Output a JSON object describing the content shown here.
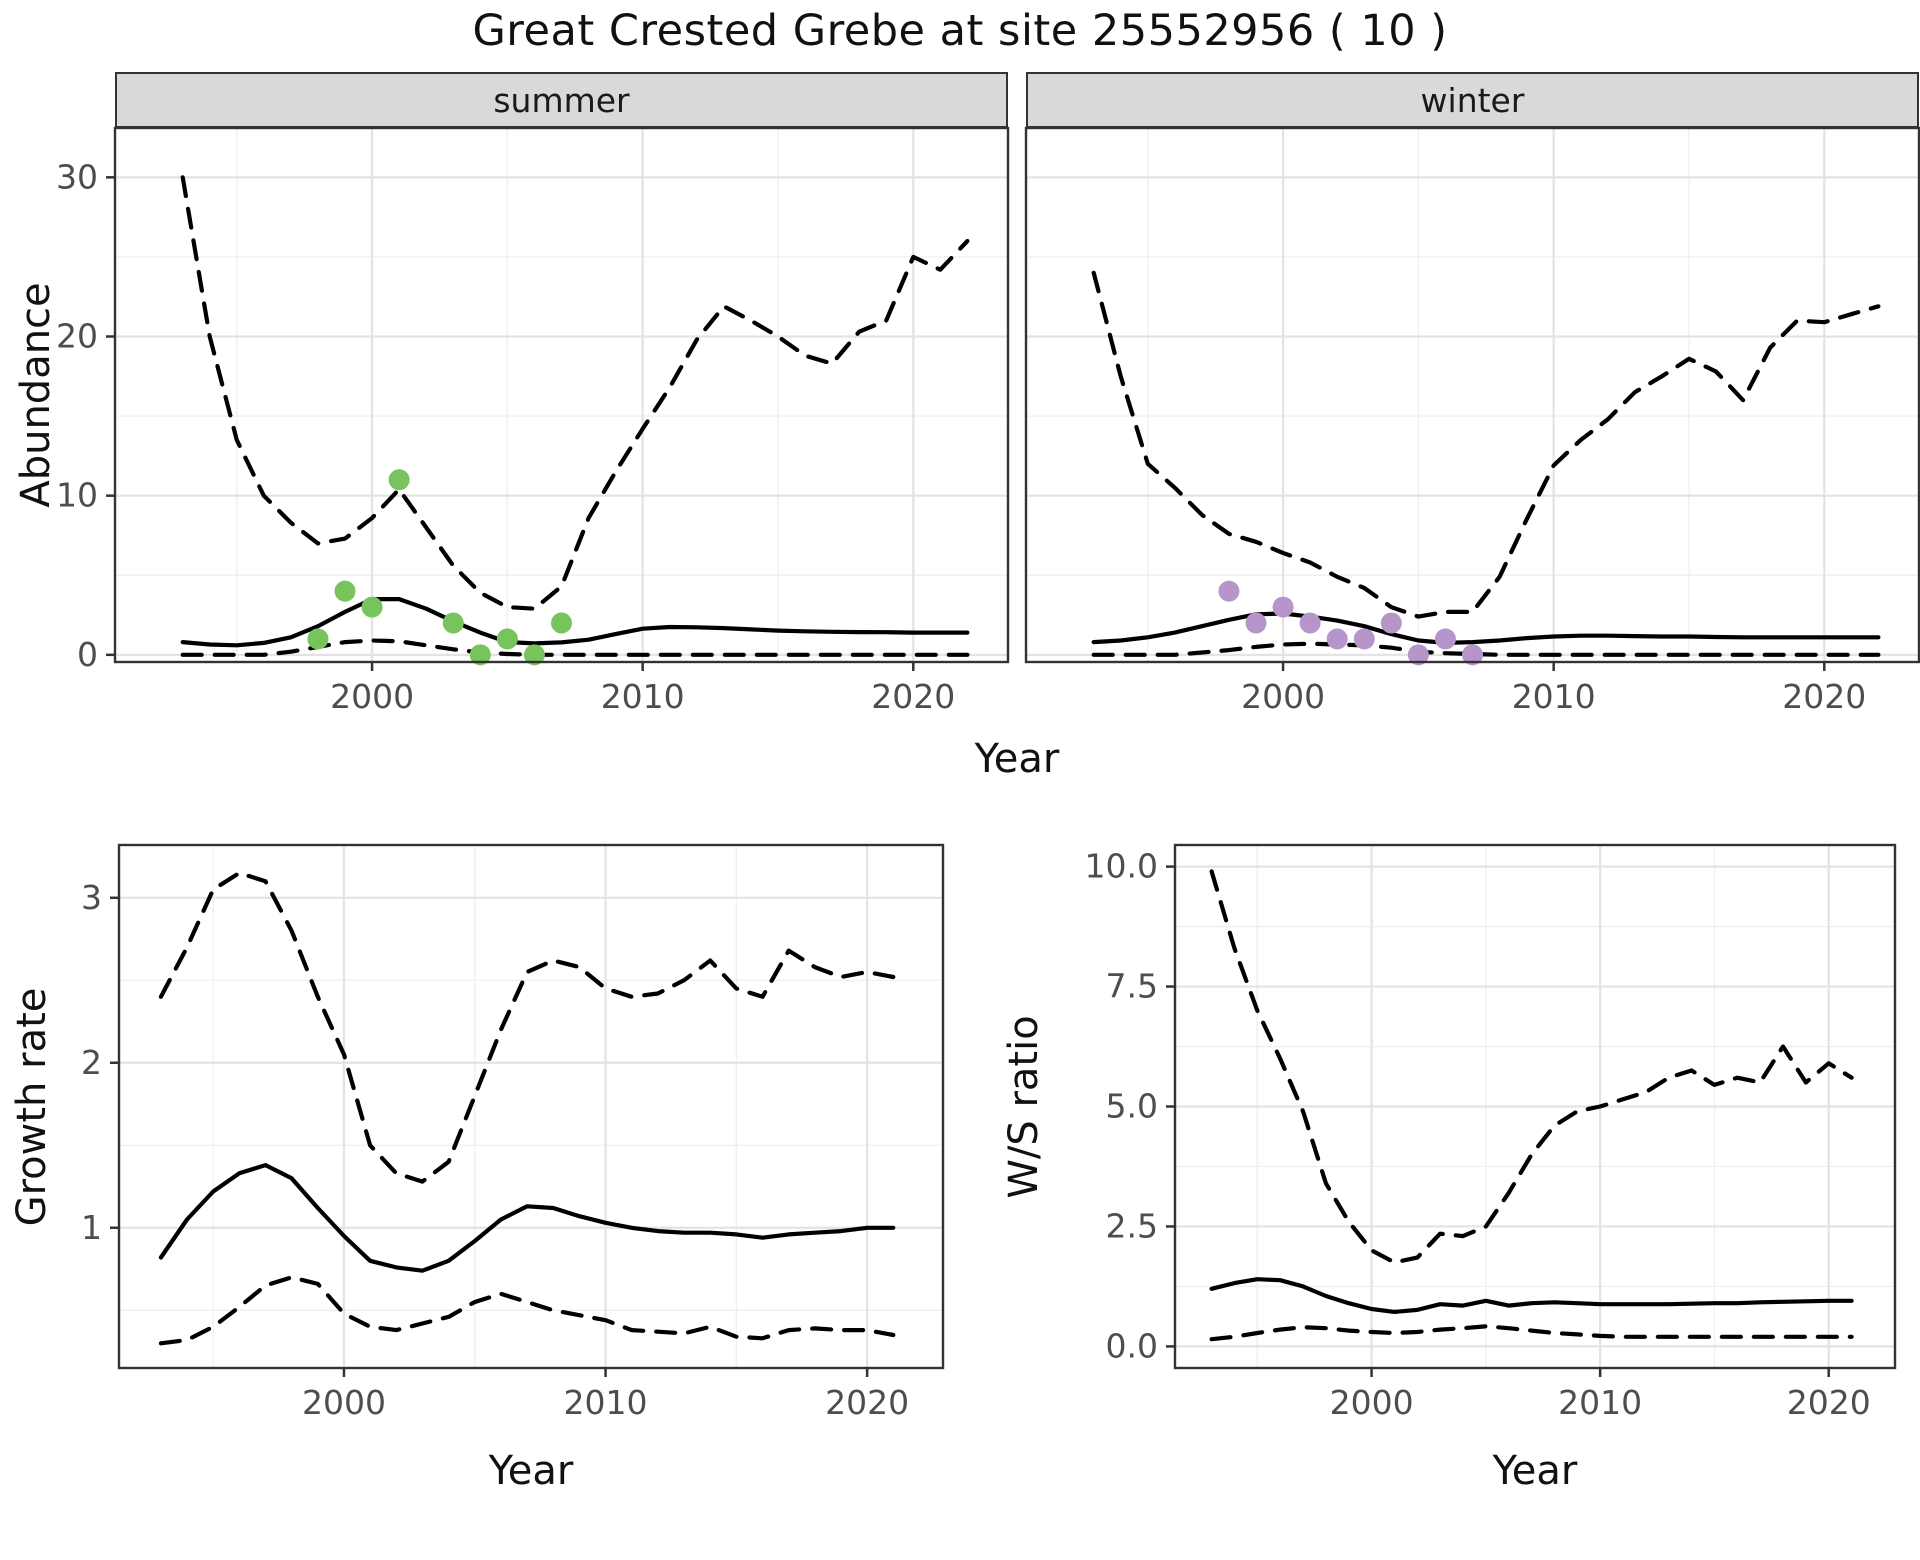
{
  "page": {
    "title": "Great Crested Grebe at site 25552956 ( 10 )"
  },
  "labels": {
    "facet_summer": "summer",
    "facet_winter": "winter",
    "abundance_axis": "Abundance",
    "growth_axis": "Growth rate",
    "ws_axis": "W/S ratio",
    "year_axis_top": "Year",
    "year_axis_bottom_left": "Year",
    "year_axis_bottom_right": "Year"
  },
  "colors": {
    "line": "#000000",
    "summer_points": "#77c35c",
    "winter_points": "#b795ca",
    "grid_major": "#e3e3e3",
    "grid_minor": "#f0f0f0",
    "panel_border": "#333333",
    "strip_bg": "#d9d9d9",
    "axis_text": "#4d4d4d",
    "tick": "#333333"
  },
  "chart_data": [
    {
      "type": "line",
      "name": "abundance-summer",
      "facet": "summer",
      "xlabel": "Year",
      "ylabel": "Abundance",
      "xlim": [
        1990.5,
        2023.5
      ],
      "ylim": [
        -0.45,
        33.1
      ],
      "xticks": [
        2000,
        2010,
        2020
      ],
      "xtick_labels": [
        "2000",
        "2010",
        "2020"
      ],
      "xminor": [
        1995,
        2005,
        2015
      ],
      "yticks": [
        0,
        10,
        20,
        30
      ],
      "ytick_labels": [
        "0",
        "10",
        "20",
        "30"
      ],
      "yminor": [
        5,
        15,
        25
      ],
      "x": [
        1993,
        1994,
        1995,
        1996,
        1997,
        1998,
        1999,
        2000,
        2001,
        2002,
        2003,
        2004,
        2005,
        2006,
        2007,
        2008,
        2009,
        2010,
        2011,
        2012,
        2013,
        2014,
        2015,
        2016,
        2017,
        2018,
        2019,
        2020,
        2021,
        2022
      ],
      "series": [
        {
          "name": "estimate",
          "style": "solid",
          "values": [
            0.8,
            0.65,
            0.6,
            0.75,
            1.1,
            1.8,
            2.7,
            3.5,
            3.5,
            2.9,
            2.1,
            1.4,
            0.8,
            0.72,
            0.78,
            0.95,
            1.3,
            1.64,
            1.75,
            1.73,
            1.68,
            1.6,
            1.52,
            1.48,
            1.45,
            1.43,
            1.42,
            1.4,
            1.4,
            1.4
          ]
        },
        {
          "name": "upper-ci",
          "style": "dashed",
          "values": [
            30,
            20,
            13.5,
            10,
            8.3,
            7.0,
            7.3,
            8.6,
            10.4,
            8.0,
            5.6,
            3.9,
            3.0,
            2.9,
            4.3,
            8.6,
            11.5,
            14.2,
            16.8,
            19.8,
            21.9,
            21.0,
            20.0,
            18.8,
            18.3,
            20.3,
            21.0,
            25.0,
            24.2,
            26.0
          ]
        },
        {
          "name": "lower-ci",
          "style": "dashed",
          "values": [
            0,
            0,
            0,
            0,
            0.2,
            0.5,
            0.8,
            0.9,
            0.85,
            0.6,
            0.35,
            0.15,
            0.05,
            0,
            0,
            0,
            0,
            0,
            0,
            0,
            0,
            0,
            0,
            0,
            0,
            0,
            0,
            0,
            0,
            0
          ]
        }
      ],
      "observations": {
        "color": "#77c35c",
        "points": [
          [
            1998,
            1
          ],
          [
            1999,
            4
          ],
          [
            2000,
            3
          ],
          [
            2001,
            11
          ],
          [
            2003,
            2
          ],
          [
            2004,
            0
          ],
          [
            2005,
            1
          ],
          [
            2006,
            0
          ],
          [
            2007,
            2
          ]
        ]
      }
    },
    {
      "type": "line",
      "name": "abundance-winter",
      "facet": "winter",
      "xlabel": "Year",
      "ylabel": "Abundance",
      "xlim": [
        1990.5,
        2023.5
      ],
      "ylim": [
        -0.45,
        33.1
      ],
      "xticks": [
        2000,
        2010,
        2020
      ],
      "xtick_labels": [
        "2000",
        "2010",
        "2020"
      ],
      "xminor": [
        1995,
        2005,
        2015
      ],
      "yticks": [
        0,
        10,
        20,
        30
      ],
      "ytick_labels": [
        "0",
        "10",
        "20",
        "30"
      ],
      "yminor": [
        5,
        15,
        25
      ],
      "x": [
        1993,
        1994,
        1995,
        1996,
        1997,
        1998,
        1999,
        2000,
        2001,
        2002,
        2003,
        2004,
        2005,
        2006,
        2007,
        2008,
        2009,
        2010,
        2011,
        2012,
        2013,
        2014,
        2015,
        2016,
        2017,
        2018,
        2019,
        2020,
        2021,
        2022
      ],
      "series": [
        {
          "name": "estimate",
          "style": "solid",
          "values": [
            0.8,
            0.9,
            1.1,
            1.4,
            1.8,
            2.2,
            2.55,
            2.6,
            2.4,
            2.15,
            1.8,
            1.3,
            0.9,
            0.75,
            0.8,
            0.9,
            1.05,
            1.15,
            1.2,
            1.2,
            1.18,
            1.15,
            1.15,
            1.12,
            1.1,
            1.1,
            1.1,
            1.1,
            1.1,
            1.1
          ]
        },
        {
          "name": "upper-ci",
          "style": "dashed",
          "values": [
            24,
            17.5,
            12,
            10.5,
            8.8,
            7.6,
            7.1,
            6.4,
            5.8,
            4.9,
            4.2,
            3.0,
            2.4,
            2.7,
            2.7,
            4.9,
            8.5,
            11.9,
            13.5,
            14.8,
            16.5,
            17.5,
            18.6,
            17.8,
            16.0,
            19.3,
            21.0,
            20.9,
            21.4,
            21.9
          ]
        },
        {
          "name": "lower-ci",
          "style": "dashed",
          "values": [
            0,
            0,
            0,
            0,
            0.15,
            0.3,
            0.5,
            0.65,
            0.7,
            0.65,
            0.6,
            0.45,
            0.2,
            0.1,
            0.05,
            0,
            0,
            0,
            0,
            0,
            0,
            0,
            0,
            0,
            0,
            0,
            0,
            0,
            0,
            0
          ]
        }
      ],
      "observations": {
        "color": "#b795ca",
        "points": [
          [
            1998,
            4
          ],
          [
            1999,
            2
          ],
          [
            2000,
            3
          ],
          [
            2001,
            2
          ],
          [
            2002,
            1
          ],
          [
            2003,
            1
          ],
          [
            2004,
            2
          ],
          [
            2005,
            0
          ],
          [
            2006,
            1
          ],
          [
            2007,
            0
          ]
        ]
      }
    },
    {
      "type": "line",
      "name": "growth-rate",
      "xlabel": "Year",
      "ylabel": "Growth rate",
      "xlim": [
        1991.4,
        2022.9
      ],
      "ylim": [
        0.15,
        3.32
      ],
      "xticks": [
        2000,
        2010,
        2020
      ],
      "xtick_labels": [
        "2000",
        "2010",
        "2020"
      ],
      "xminor": [
        1995,
        2005,
        2015
      ],
      "yticks": [
        1,
        2,
        3
      ],
      "ytick_labels": [
        "1",
        "2",
        "3"
      ],
      "yminor": [
        0.5,
        1.5,
        2.5
      ],
      "x": [
        1993,
        1994,
        1995,
        1996,
        1997,
        1998,
        1999,
        2000,
        2001,
        2002,
        2003,
        2004,
        2005,
        2006,
        2007,
        2008,
        2009,
        2010,
        2011,
        2012,
        2013,
        2014,
        2015,
        2016,
        2017,
        2018,
        2019,
        2020,
        2021
      ],
      "series": [
        {
          "name": "estimate",
          "style": "solid",
          "values": [
            0.82,
            1.05,
            1.22,
            1.33,
            1.38,
            1.3,
            1.12,
            0.95,
            0.8,
            0.76,
            0.74,
            0.8,
            0.92,
            1.05,
            1.13,
            1.12,
            1.07,
            1.03,
            1.0,
            0.98,
            0.97,
            0.97,
            0.96,
            0.94,
            0.96,
            0.97,
            0.98,
            1.0,
            1.0
          ]
        },
        {
          "name": "upper-ci",
          "style": "dashed",
          "values": [
            2.4,
            2.7,
            3.05,
            3.15,
            3.1,
            2.8,
            2.4,
            2.05,
            1.5,
            1.33,
            1.28,
            1.4,
            1.8,
            2.2,
            2.55,
            2.62,
            2.58,
            2.45,
            2.4,
            2.42,
            2.5,
            2.62,
            2.45,
            2.4,
            2.68,
            2.58,
            2.52,
            2.55,
            2.52
          ]
        },
        {
          "name": "lower-ci",
          "style": "dashed",
          "values": [
            0.3,
            0.32,
            0.4,
            0.52,
            0.65,
            0.7,
            0.66,
            0.48,
            0.4,
            0.38,
            0.42,
            0.46,
            0.55,
            0.6,
            0.55,
            0.5,
            0.47,
            0.44,
            0.38,
            0.37,
            0.36,
            0.4,
            0.34,
            0.33,
            0.38,
            0.39,
            0.38,
            0.38,
            0.35
          ]
        }
      ],
      "observations": {
        "color": "",
        "points": []
      }
    },
    {
      "type": "line",
      "name": "ws-ratio",
      "xlabel": "Year",
      "ylabel": "W/S ratio",
      "xlim": [
        1991.4,
        2022.9
      ],
      "ylim": [
        -0.45,
        10.45
      ],
      "xticks": [
        2000,
        2010,
        2020
      ],
      "xtick_labels": [
        "2000",
        "2010",
        "2020"
      ],
      "xminor": [
        1995,
        2005,
        2015
      ],
      "yticks": [
        0,
        2.5,
        5,
        7.5,
        10
      ],
      "ytick_labels": [
        "0.0",
        "2.5",
        "5.0",
        "7.5",
        "10.0"
      ],
      "yminor": [
        1.25,
        3.75,
        6.25,
        8.75
      ],
      "x": [
        1993,
        1994,
        1995,
        1996,
        1997,
        1998,
        1999,
        2000,
        2001,
        2002,
        2003,
        2004,
        2005,
        2006,
        2007,
        2008,
        2009,
        2010,
        2011,
        2012,
        2013,
        2014,
        2015,
        2016,
        2017,
        2018,
        2019,
        2020,
        2021
      ],
      "series": [
        {
          "name": "estimate",
          "style": "solid",
          "values": [
            1.2,
            1.32,
            1.4,
            1.38,
            1.25,
            1.05,
            0.9,
            0.78,
            0.72,
            0.76,
            0.88,
            0.85,
            0.95,
            0.85,
            0.9,
            0.92,
            0.9,
            0.88,
            0.88,
            0.88,
            0.88,
            0.89,
            0.9,
            0.9,
            0.92,
            0.93,
            0.94,
            0.95,
            0.95
          ]
        },
        {
          "name": "upper-ci",
          "style": "dashed",
          "values": [
            9.9,
            8.3,
            7.0,
            6.0,
            4.9,
            3.4,
            2.6,
            2.0,
            1.75,
            1.85,
            2.35,
            2.3,
            2.5,
            3.2,
            4.0,
            4.6,
            4.9,
            5.0,
            5.15,
            5.3,
            5.6,
            5.75,
            5.45,
            5.6,
            5.5,
            6.25,
            5.5,
            5.9,
            5.6
          ]
        },
        {
          "name": "lower-ci",
          "style": "dashed",
          "values": [
            0.15,
            0.2,
            0.28,
            0.35,
            0.4,
            0.38,
            0.33,
            0.3,
            0.28,
            0.3,
            0.35,
            0.38,
            0.42,
            0.38,
            0.33,
            0.28,
            0.25,
            0.22,
            0.2,
            0.2,
            0.2,
            0.2,
            0.2,
            0.2,
            0.2,
            0.2,
            0.2,
            0.2,
            0.2
          ]
        }
      ],
      "observations": {
        "color": "",
        "points": []
      }
    }
  ]
}
